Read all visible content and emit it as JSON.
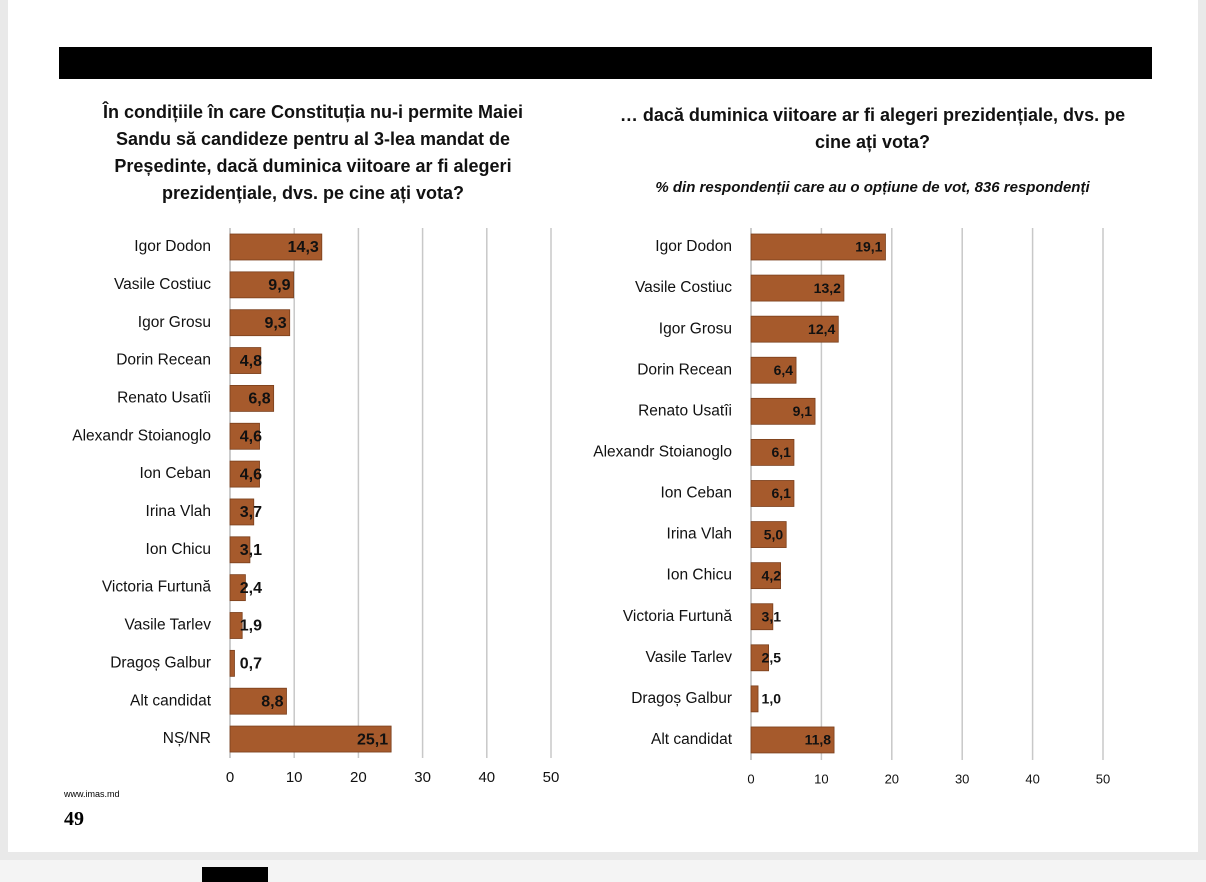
{
  "chart_data": [
    {
      "type": "bar",
      "orientation": "horizontal",
      "title": "În condițiile în care Constituția nu-i permite Maiei Sandu să candideze pentru al 3-lea mandat de Președinte, dacă duminica viitoare ar fi alegeri prezidențiale, dvs. pe cine ați vota?",
      "categories": [
        "Igor Dodon",
        "Vasile Costiuc",
        "Igor Grosu",
        "Dorin Recean",
        "Renato Usatîi",
        "Alexandr Stoianoglo",
        "Ion Ceban",
        "Irina Vlah",
        "Ion Chicu",
        "Victoria Furtună",
        "Vasile Tarlev",
        "Dragoș Galbur",
        "Alt candidat",
        "NȘ/NR"
      ],
      "values": [
        14.3,
        9.9,
        9.3,
        4.8,
        6.8,
        4.6,
        4.6,
        3.7,
        3.1,
        2.4,
        1.9,
        0.7,
        8.8,
        25.1
      ],
      "value_labels": [
        "14,3",
        "9,9",
        "9,3",
        "4,8",
        "6,8",
        "4,6",
        "4,6",
        "3,7",
        "3,1",
        "2,4",
        "1,9",
        "0,7",
        "8,8",
        "25,1"
      ],
      "color": "#a65a2c",
      "xlim": [
        0,
        50
      ],
      "xticks": [
        0,
        10,
        20,
        30,
        40,
        50
      ],
      "grid": true
    },
    {
      "type": "bar",
      "orientation": "horizontal",
      "title": "… dacă duminica viitoare ar fi alegeri prezidențiale, dvs. pe cine ați vota?",
      "subtitle": "% din respondenții care au o opțiune de vot, 836 respondenți",
      "categories": [
        "Igor Dodon",
        "Vasile Costiuc",
        "Igor Grosu",
        "Dorin Recean",
        "Renato Usatîi",
        "Alexandr Stoianoglo",
        "Ion Ceban",
        "Irina Vlah",
        "Ion Chicu",
        "Victoria Furtună",
        "Vasile Tarlev",
        "Dragoș Galbur",
        "Alt candidat"
      ],
      "values": [
        19.1,
        13.2,
        12.4,
        6.4,
        9.1,
        6.1,
        6.1,
        5.0,
        4.2,
        3.1,
        2.5,
        1.0,
        11.8
      ],
      "value_labels": [
        "19,1",
        "13,2",
        "12,4",
        "6,4",
        "9,1",
        "6,1",
        "6,1",
        "5,0",
        "4,2",
        "3,1",
        "2,5",
        "1,0",
        "11,8"
      ],
      "color": "#a65a2c",
      "xlim": [
        0,
        50
      ],
      "xticks": [
        0,
        10,
        20,
        30,
        40,
        50
      ],
      "grid": true
    }
  ],
  "footer": {
    "source": "www.imas.md",
    "page_number": "49"
  }
}
